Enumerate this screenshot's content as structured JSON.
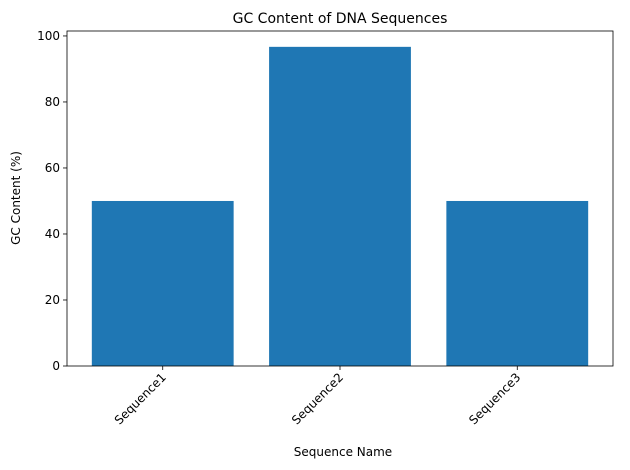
{
  "chart_data": {
    "type": "bar",
    "title": "GC Content of DNA Sequences",
    "x_label": "Sequence Name",
    "y_label": "GC Content (%)",
    "categories": [
      "Sequence1",
      "Sequence2",
      "Sequence3"
    ],
    "values": [
      50,
      96.7,
      50
    ],
    "color": "#1f77b4",
    "ylim": [
      0,
      101.5
    ],
    "yticks": [
      0,
      20,
      40,
      60,
      80,
      100
    ],
    "grid": false
  }
}
